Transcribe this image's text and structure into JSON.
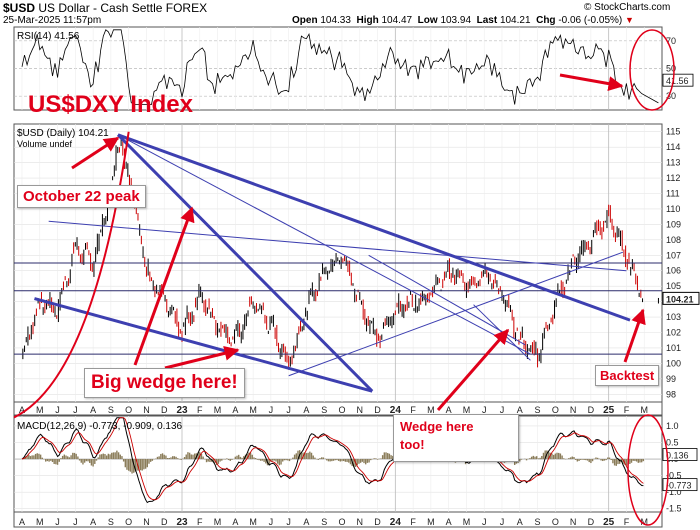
{
  "header": {
    "symbol": "$USD",
    "name": "US Dollar - Cash Settle",
    "exchange": "FOREX",
    "datetime": "25-Mar-2025 11:57pm",
    "open_label": "Open",
    "open": "104.33",
    "high_label": "High",
    "high": "104.47",
    "low_label": "Low",
    "low": "103.94",
    "last_label": "Last",
    "last": "104.21",
    "chg_label": "Chg",
    "chg": "-0.06 (-0.05%)",
    "chg_marker": "▼",
    "brand": "© StockCharts.com"
  },
  "colors": {
    "price_up": "#000000",
    "price_down": "#cc0000",
    "trendline": "#3d3fb0",
    "annotation_red": "#e0001a",
    "macd_hist": "#8b7d5a"
  },
  "annotations": {
    "title": "US$DXY Index",
    "oct22": "October 22 peak",
    "big_wedge": "Big wedge here!",
    "wedge_line1": "Wedge here",
    "wedge_line2": "too!",
    "backtest": "Backtest"
  },
  "chart_data": [
    {
      "type": "line",
      "title": "RSI(14) 41.56",
      "indicator": "RSI(14)",
      "last_value": 41.56,
      "last_label": "41.56",
      "ylim": [
        20,
        80
      ],
      "yticks": [
        30,
        50,
        70
      ],
      "ytick_labels": [
        "30",
        "50",
        "70"
      ],
      "reference_lines": [
        30,
        70
      ]
    },
    {
      "type": "candlestick",
      "title": "$USD (Daily) 104.21",
      "subtitle": "Volume undef",
      "last_value": 104.21,
      "last_label": "104.21",
      "ylim": [
        97.5,
        115.5
      ],
      "yticks": [
        98,
        99,
        100,
        101,
        102,
        103,
        104,
        105,
        106,
        107,
        108,
        109,
        110,
        111,
        112,
        113,
        114,
        115
      ],
      "ytick_labels": [
        "98",
        "99",
        "100",
        "101",
        "102",
        "103",
        "104",
        "105",
        "106",
        "107",
        "108",
        "109",
        "110",
        "111",
        "112",
        "113",
        "114",
        "115"
      ],
      "x_ticks": [
        "A",
        "M",
        "J",
        "J",
        "A",
        "S",
        "O",
        "N",
        "D",
        "23",
        "F",
        "M",
        "A",
        "M",
        "J",
        "J",
        "A",
        "S",
        "O",
        "N",
        "D",
        "24",
        "F",
        "M",
        "A",
        "M",
        "J",
        "J",
        "A",
        "S",
        "O",
        "N",
        "D",
        "25",
        "F",
        "M"
      ],
      "horizontal_levels": [
        106.5,
        104.7,
        100.6
      ],
      "approx_closes": [
        {
          "date": "2022-04",
          "value": 100.5
        },
        {
          "date": "2022-05",
          "value": 104.0
        },
        {
          "date": "2022-06",
          "value": 103.5
        },
        {
          "date": "2022-07",
          "value": 107.5
        },
        {
          "date": "2022-08",
          "value": 106.5
        },
        {
          "date": "2022-09",
          "value": 111.0
        },
        {
          "date": "2022-09-28",
          "value": 114.7
        },
        {
          "date": "2022-10",
          "value": 112.5
        },
        {
          "date": "2022-11",
          "value": 106.0
        },
        {
          "date": "2022-12",
          "value": 104.0
        },
        {
          "date": "2023-01",
          "value": 102.0
        },
        {
          "date": "2023-02",
          "value": 104.5
        },
        {
          "date": "2023-03",
          "value": 102.5
        },
        {
          "date": "2023-04",
          "value": 101.5
        },
        {
          "date": "2023-05",
          "value": 104.0
        },
        {
          "date": "2023-06",
          "value": 102.5
        },
        {
          "date": "2023-07",
          "value": 100.0
        },
        {
          "date": "2023-08",
          "value": 103.5
        },
        {
          "date": "2023-09",
          "value": 106.0
        },
        {
          "date": "2023-10",
          "value": 107.0
        },
        {
          "date": "2023-11",
          "value": 104.0
        },
        {
          "date": "2023-12",
          "value": 101.5
        },
        {
          "date": "2024-01",
          "value": 103.5
        },
        {
          "date": "2024-02",
          "value": 104.0
        },
        {
          "date": "2024-03",
          "value": 104.5
        },
        {
          "date": "2024-04",
          "value": 106.0
        },
        {
          "date": "2024-05",
          "value": 105.0
        },
        {
          "date": "2024-06",
          "value": 106.0
        },
        {
          "date": "2024-07",
          "value": 104.5
        },
        {
          "date": "2024-08",
          "value": 101.5
        },
        {
          "date": "2024-09",
          "value": 100.5
        },
        {
          "date": "2024-10",
          "value": 104.0
        },
        {
          "date": "2024-11",
          "value": 106.5
        },
        {
          "date": "2024-12",
          "value": 108.0
        },
        {
          "date": "2025-01",
          "value": 109.5
        },
        {
          "date": "2025-02",
          "value": 107.0
        },
        {
          "date": "2025-03",
          "value": 104.0
        }
      ]
    },
    {
      "type": "line",
      "title": "MACD(12,26,9) -0.773, -0.909, 0.136",
      "indicator": "MACD(12,26,9)",
      "values": {
        "macd": -0.773,
        "signal": -0.909,
        "histogram": 0.136
      },
      "ylim": [
        -1.6,
        1.3
      ],
      "yticks": [
        1.0,
        0.5,
        0.0,
        -0.5,
        -1.0,
        -1.5
      ],
      "ytick_labels": [
        "1.0",
        "0.5",
        "0.0",
        "-0.5",
        "-1.0",
        "-1.5"
      ],
      "value_labels": [
        "0.136",
        "-0.773"
      ],
      "x_ticks": [
        "A",
        "M",
        "J",
        "J",
        "A",
        "S",
        "O",
        "N",
        "D",
        "23",
        "F",
        "M",
        "A",
        "M",
        "J",
        "J",
        "A",
        "S",
        "O",
        "N",
        "D",
        "24",
        "F",
        "M",
        "A",
        "M",
        "J",
        "J",
        "A",
        "S",
        "O",
        "N",
        "D",
        "25",
        "F",
        "M"
      ]
    }
  ]
}
